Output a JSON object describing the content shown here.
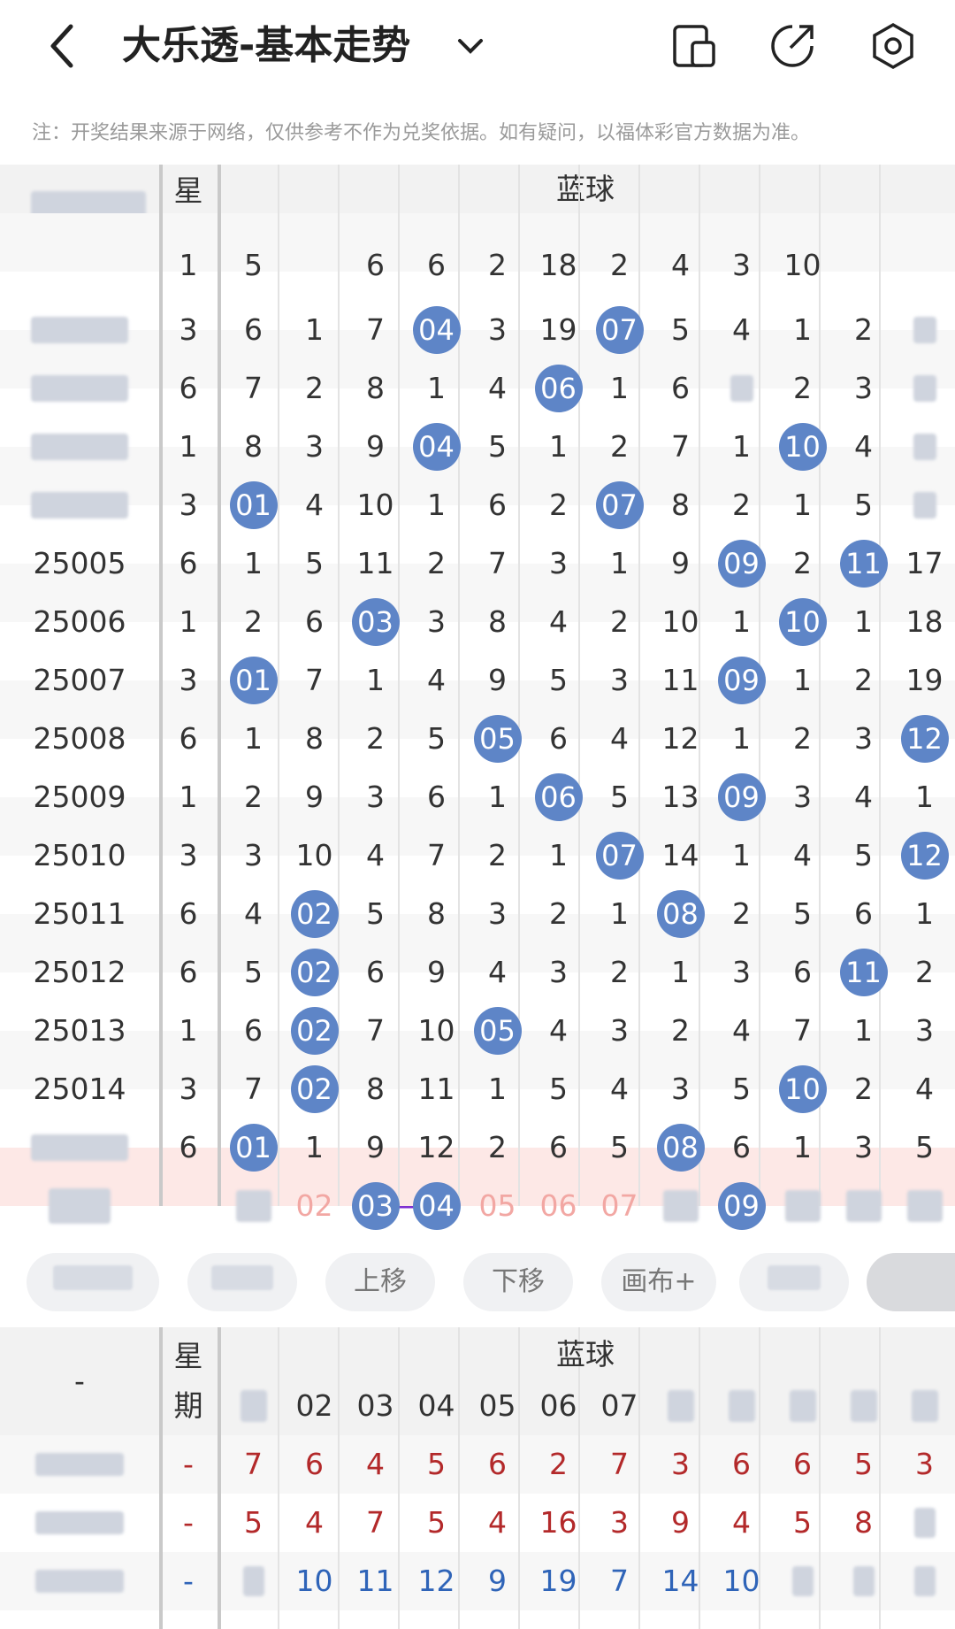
{
  "header": {
    "title": "大乐透-基本走势",
    "icons": [
      "back-arrow-icon",
      "chevron-down-icon",
      "phone-device-icon",
      "share-icon",
      "settings-hexagon-icon"
    ]
  },
  "notice": "注：开奖结果来源于网络，仅供参考不作为兑奖依据。如有疑问，以福体彩官方数据为准。",
  "table": {
    "weekday_label_top": "星",
    "weekday_label_bottom": "期",
    "section_title": "蓝球",
    "columns": [
      "",
      "02",
      "03",
      "04",
      "05",
      "06",
      "07",
      "",
      "",
      "",
      "",
      ""
    ],
    "rows": [
      {
        "issue": "",
        "week": "3",
        "cells": [
          "6",
          "1",
          "7",
          "04",
          "3",
          "19",
          "07",
          "5",
          "4",
          "1",
          "2",
          ""
        ]
      },
      {
        "issue": "",
        "week": "6",
        "cells": [
          "7",
          "2",
          "8",
          "1",
          "4",
          "06",
          "1",
          "6",
          "",
          "2",
          "3",
          ""
        ]
      },
      {
        "issue": "",
        "week": "1",
        "cells": [
          "8",
          "3",
          "9",
          "04",
          "5",
          "1",
          "2",
          "7",
          "1",
          "10",
          "4",
          ""
        ]
      },
      {
        "issue": "",
        "week": "3",
        "cells": [
          "01",
          "4",
          "10",
          "1",
          "6",
          "2",
          "07",
          "8",
          "2",
          "1",
          "5",
          ""
        ]
      },
      {
        "issue": "25005",
        "week": "6",
        "cells": [
          "1",
          "5",
          "11",
          "2",
          "7",
          "3",
          "1",
          "9",
          "09",
          "2",
          "11",
          "17"
        ]
      },
      {
        "issue": "25006",
        "week": "1",
        "cells": [
          "2",
          "6",
          "03",
          "3",
          "8",
          "4",
          "2",
          "10",
          "1",
          "10",
          "1",
          "18"
        ]
      },
      {
        "issue": "25007",
        "week": "3",
        "cells": [
          "01",
          "7",
          "1",
          "4",
          "9",
          "5",
          "3",
          "11",
          "09",
          "1",
          "2",
          "19"
        ]
      },
      {
        "issue": "25008",
        "week": "6",
        "cells": [
          "1",
          "8",
          "2",
          "5",
          "05",
          "6",
          "4",
          "12",
          "1",
          "2",
          "3",
          "12"
        ]
      },
      {
        "issue": "25009",
        "week": "1",
        "cells": [
          "2",
          "9",
          "3",
          "6",
          "1",
          "06",
          "5",
          "13",
          "09",
          "3",
          "4",
          "1"
        ]
      },
      {
        "issue": "25010",
        "week": "3",
        "cells": [
          "3",
          "10",
          "4",
          "7",
          "2",
          "1",
          "07",
          "14",
          "1",
          "4",
          "5",
          "12"
        ]
      },
      {
        "issue": "25011",
        "week": "6",
        "cells": [
          "4",
          "02",
          "5",
          "8",
          "3",
          "2",
          "1",
          "08",
          "2",
          "5",
          "6",
          "1"
        ]
      },
      {
        "issue": "25012",
        "week": "6",
        "cells": [
          "5",
          "02",
          "6",
          "9",
          "4",
          "3",
          "2",
          "1",
          "3",
          "6",
          "11",
          "2"
        ]
      },
      {
        "issue": "25013",
        "week": "1",
        "cells": [
          "6",
          "02",
          "7",
          "10",
          "05",
          "4",
          "3",
          "2",
          "4",
          "7",
          "1",
          "3"
        ]
      },
      {
        "issue": "25014",
        "week": "3",
        "cells": [
          "7",
          "02",
          "8",
          "11",
          "1",
          "5",
          "4",
          "3",
          "5",
          "10",
          "2",
          "4"
        ]
      },
      {
        "issue": "",
        "week": "6",
        "cells": [
          "01",
          "1",
          "9",
          "12",
          "2",
          "6",
          "5",
          "08",
          "6",
          "1",
          "3",
          "5"
        ]
      }
    ],
    "highlight_index": [
      0,
      2,
      3,
      4,
      6,
      7,
      8,
      8,
      9,
      9,
      12,
      13
    ],
    "prediction_row": {
      "cells": [
        "",
        "02",
        "03",
        "04",
        "05",
        "06",
        "07",
        "",
        "09",
        "",
        "",
        ""
      ]
    }
  },
  "buttons": [
    "",
    "",
    "上移",
    "下移",
    "画布+",
    "",
    ""
  ],
  "bottom": {
    "issue_dash": "-",
    "weekday_label_top": "星",
    "weekday_label_bottom": "期",
    "section_title": "蓝球",
    "columns": [
      "",
      "02",
      "03",
      "04",
      "05",
      "06",
      "07",
      "",
      "",
      "",
      "",
      ""
    ],
    "rows": [
      {
        "week": "-",
        "color": "red",
        "cells": [
          "7",
          "6",
          "4",
          "5",
          "6",
          "2",
          "7",
          "3",
          "6",
          "6",
          "5",
          "3"
        ]
      },
      {
        "week": "-",
        "color": "red",
        "cells": [
          "5",
          "4",
          "7",
          "5",
          "4",
          "16",
          "3",
          "9",
          "4",
          "5",
          "8",
          ""
        ]
      },
      {
        "week": "-",
        "color": "blue",
        "cells": [
          "",
          "10",
          "11",
          "12",
          "9",
          "19",
          "7",
          "14",
          "10",
          "",
          "",
          ""
        ]
      }
    ]
  },
  "colors": {
    "ball": "#5e85c7",
    "line": "#5e85c7",
    "purple": "#7f2fd1",
    "red_text": "#b3292a",
    "blue_text": "#2f64b8"
  }
}
